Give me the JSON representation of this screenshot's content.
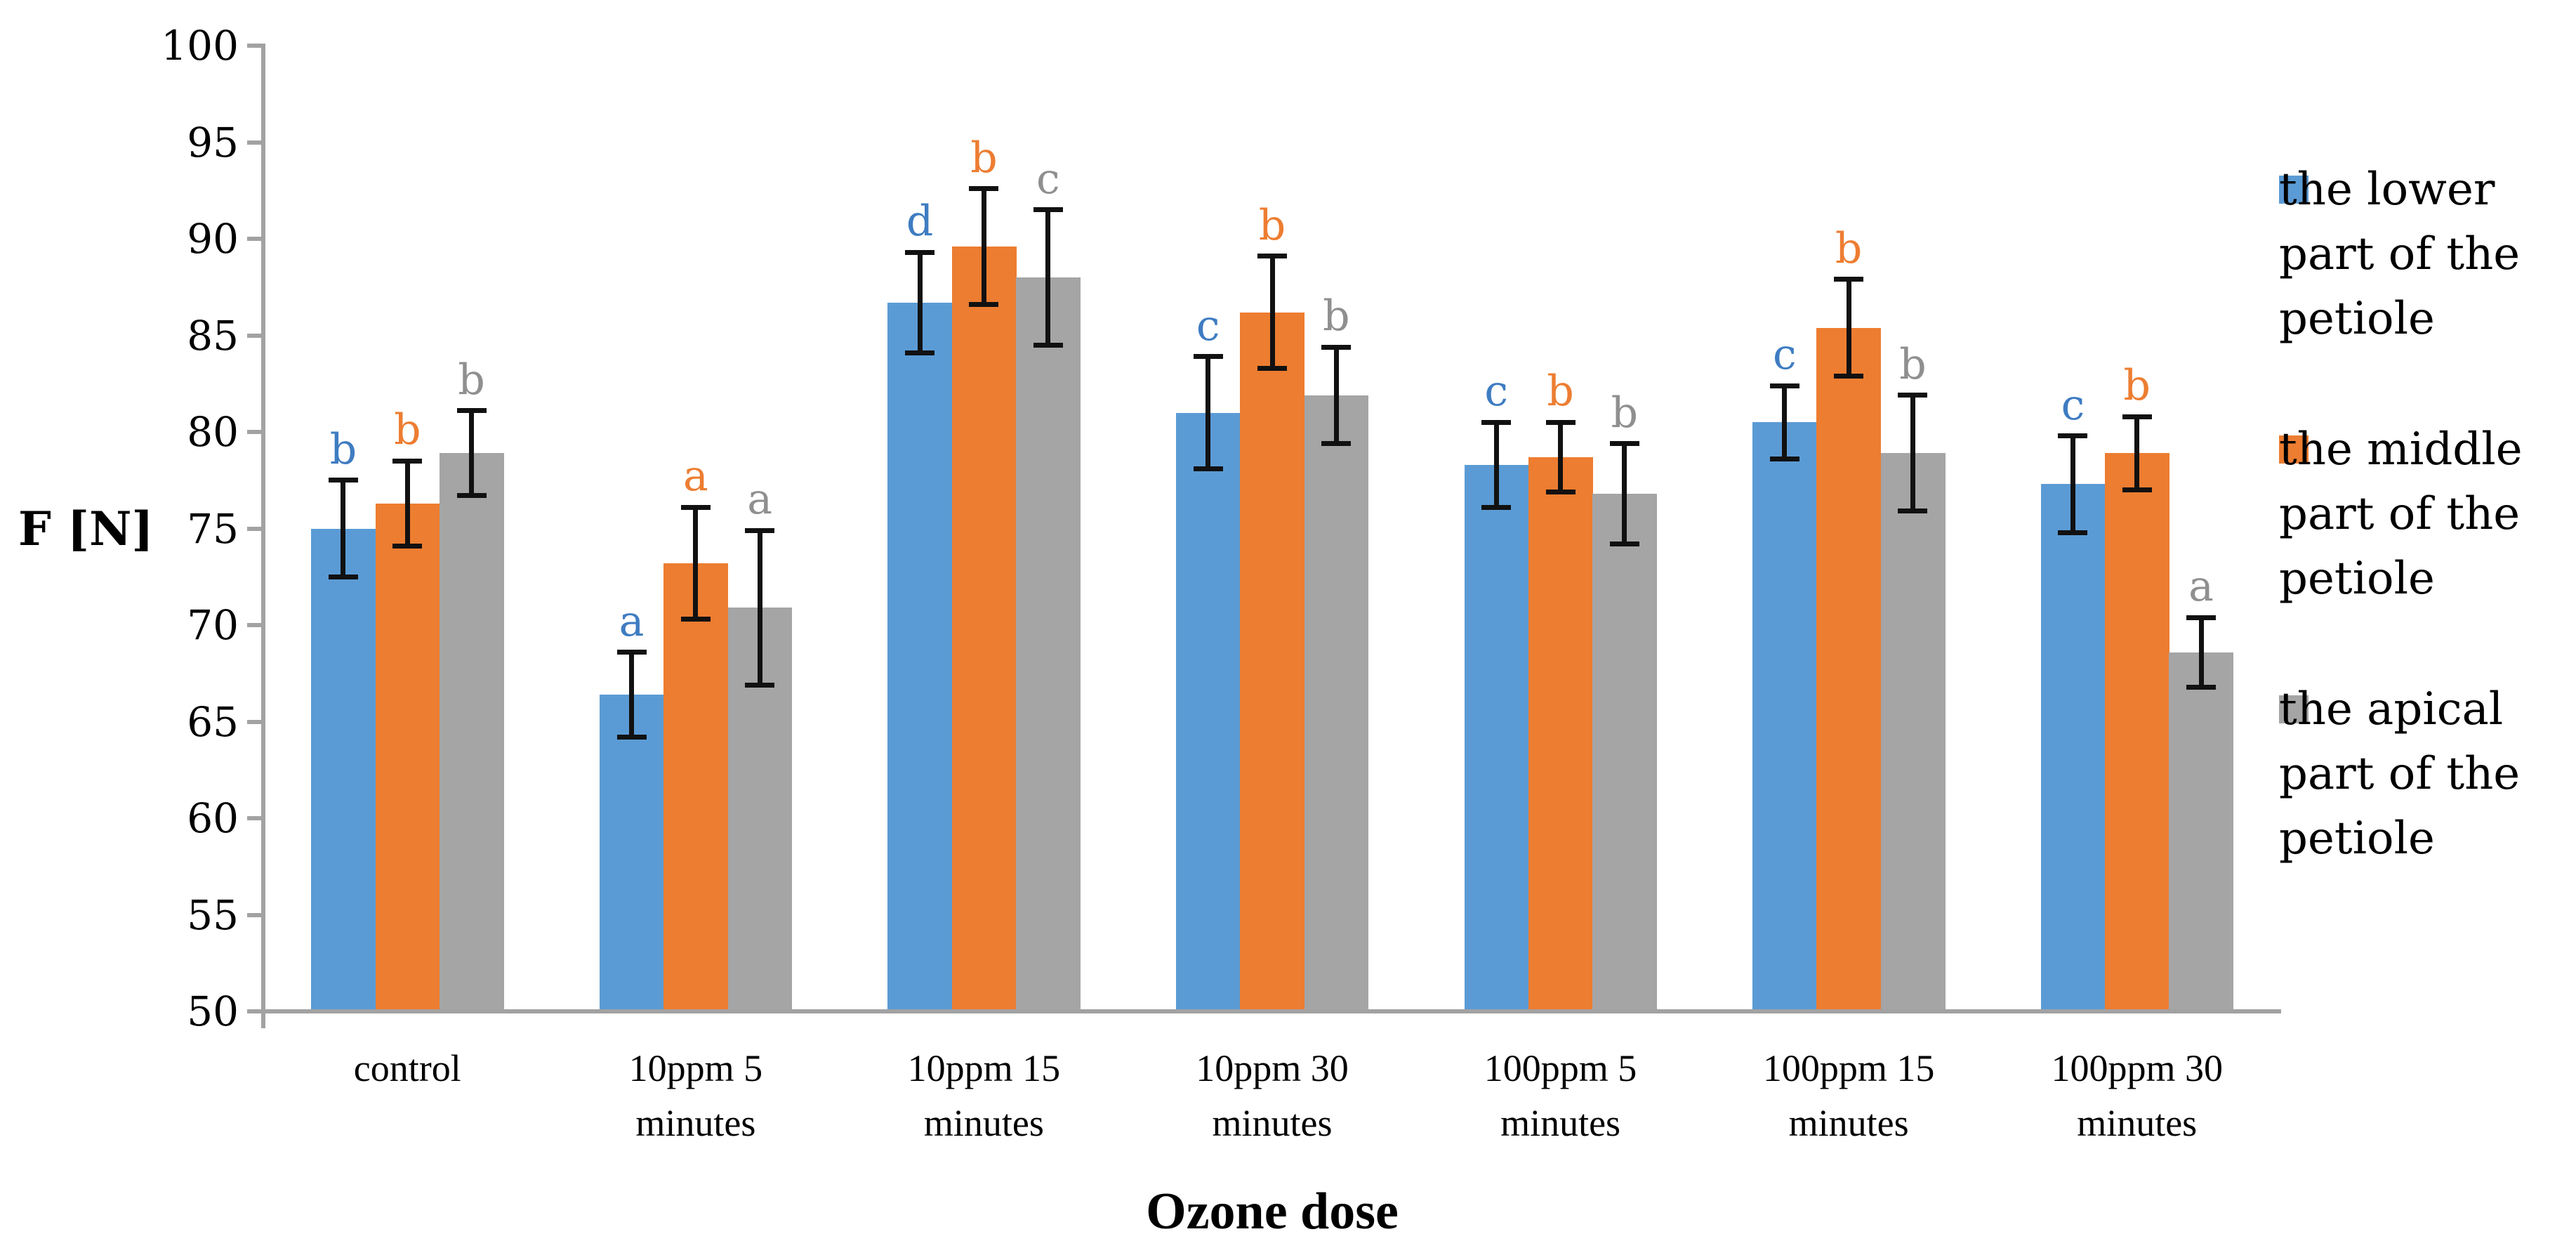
{
  "chart_data": {
    "type": "bar",
    "title": "",
    "xlabel": "Ozone dose",
    "ylabel": "F [N]",
    "ylim": [
      50,
      100
    ],
    "ytick_step": 5,
    "yticks": [
      50,
      55,
      60,
      65,
      70,
      75,
      80,
      85,
      90,
      95,
      100
    ],
    "grid": false,
    "legend_position": "right",
    "background": "#FFFFFF",
    "axis_color": "#A2A2A2",
    "error_bar_color": "#111111",
    "categories": [
      "control",
      "10ppm 5 minutes",
      "10ppm 15 minutes",
      "10ppm 30 minutes",
      "100ppm 5 minutes",
      "100ppm 15 minutes",
      "100ppm 30 minutes"
    ],
    "series": [
      {
        "name": "the lower part of the petiole",
        "color": "#5B9BD5",
        "letter_color": "#3E7CC1",
        "values": [
          75.0,
          66.4,
          86.7,
          81.0,
          78.3,
          80.5,
          77.3
        ],
        "errors": [
          2.5,
          2.2,
          2.6,
          2.9,
          2.2,
          1.9,
          2.5
        ],
        "letters": [
          "b",
          "a",
          "d",
          "c",
          "c",
          "c",
          "c"
        ]
      },
      {
        "name": "the middle part of the petiole",
        "color": "#ED7D31",
        "letter_color": "#ED7D31",
        "values": [
          76.3,
          73.2,
          89.6,
          86.2,
          78.7,
          85.4,
          78.9
        ],
        "errors": [
          2.2,
          2.9,
          3.0,
          2.9,
          1.8,
          2.5,
          1.9
        ],
        "letters": [
          "b",
          "a",
          "b",
          "b",
          "b",
          "b",
          "b"
        ]
      },
      {
        "name": "the apical part of the petiole",
        "color": "#A5A5A5",
        "letter_color": "#8F8F8F",
        "values": [
          78.9,
          70.9,
          88.0,
          81.9,
          76.8,
          78.9,
          68.6
        ],
        "errors": [
          2.2,
          4.0,
          3.5,
          2.5,
          2.6,
          3.0,
          1.8
        ],
        "letters": [
          "b",
          "a",
          "c",
          "b",
          "b",
          "b",
          "a"
        ]
      }
    ]
  }
}
